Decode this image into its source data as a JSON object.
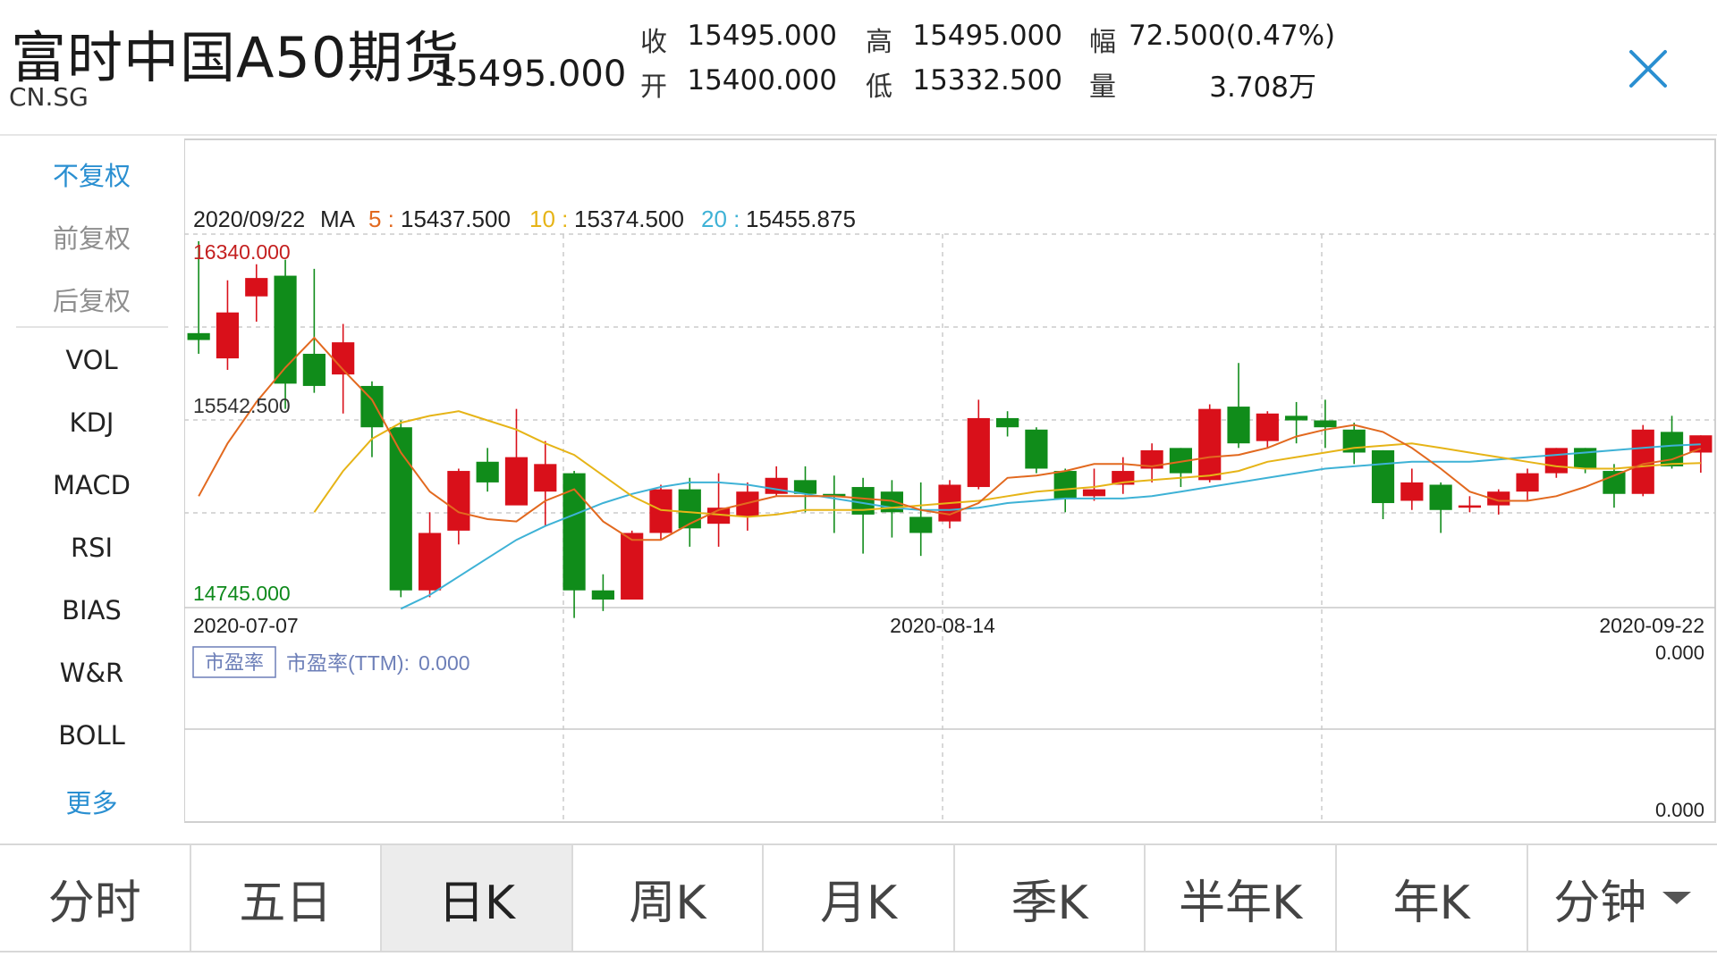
{
  "header": {
    "title": "富时中国A50期货",
    "code": "CN.SG",
    "last_price": "15495.000",
    "quotes": [
      {
        "label": "收",
        "value": "15495.000"
      },
      {
        "label": "开",
        "value": "15400.000"
      },
      {
        "label": "高",
        "value": "15495.000"
      },
      {
        "label": "低",
        "value": "15332.500"
      },
      {
        "label": "幅",
        "value": "72.500(0.47%)"
      },
      {
        "label": "量",
        "value": "3.708万"
      }
    ]
  },
  "side_menu": {
    "items": [
      "不复权",
      "前复权",
      "后复权",
      "VOL",
      "KDJ",
      "MACD",
      "RSI",
      "BIAS",
      "W&R",
      "BOLL",
      "更多"
    ],
    "active": "不复权"
  },
  "chart_data": {
    "type": "candlestick",
    "ma_info": {
      "date": "2020/09/22",
      "label": "MA",
      "ma5_label": "5 :",
      "ma5": "15437.500",
      "ma10_label": "10 :",
      "ma10": "15374.500",
      "ma20_label": "20 :",
      "ma20": "15455.875"
    },
    "y_labels": {
      "max": "16340.000",
      "mid": "15542.500",
      "min": "14745.000"
    },
    "ylim": [
      14745,
      16340
    ],
    "x_labels": [
      "2020-07-07",
      "2020-08-14",
      "2020-09-22"
    ],
    "candles": [
      [
        15940,
        15910,
        16340,
        15850
      ],
      [
        15830,
        16030,
        16170,
        15780
      ],
      [
        16100,
        16180,
        16240,
        15990
      ],
      [
        16190,
        15720,
        16260,
        15610
      ],
      [
        15850,
        15710,
        16220,
        15680
      ],
      [
        15760,
        15900,
        15980,
        15590
      ],
      [
        15710,
        15530,
        15730,
        15400
      ],
      [
        15530,
        14820,
        15560,
        14790
      ],
      [
        14820,
        15070,
        15160,
        14790
      ],
      [
        15080,
        15340,
        15350,
        15020
      ],
      [
        15380,
        15290,
        15440,
        15250
      ],
      [
        15190,
        15400,
        15610,
        15210
      ],
      [
        15250,
        15370,
        15470,
        15100
      ],
      [
        15330,
        14820,
        15340,
        14700
      ],
      [
        14820,
        14780,
        14890,
        14730
      ],
      [
        14780,
        15070,
        15080,
        14780
      ],
      [
        15070,
        15260,
        15280,
        15040
      ],
      [
        15260,
        15090,
        15310,
        15010
      ],
      [
        15110,
        15180,
        15330,
        15010
      ],
      [
        15140,
        15250,
        15290,
        15080
      ],
      [
        15240,
        15310,
        15360,
        15230
      ],
      [
        15300,
        15240,
        15360,
        15160
      ],
      [
        15240,
        15230,
        15320,
        15070
      ],
      [
        15270,
        15150,
        15310,
        14980
      ],
      [
        15250,
        15160,
        15300,
        15050
      ],
      [
        15140,
        15070,
        15290,
        14970
      ],
      [
        15120,
        15280,
        15300,
        15090
      ],
      [
        15270,
        15570,
        15650,
        15260
      ],
      [
        15570,
        15530,
        15600,
        15490
      ],
      [
        15520,
        15350,
        15530,
        15330
      ],
      [
        15340,
        15220,
        15350,
        15160
      ],
      [
        15230,
        15260,
        15350,
        15210
      ],
      [
        15280,
        15340,
        15400,
        15240
      ],
      [
        15350,
        15430,
        15460,
        15290
      ],
      [
        15440,
        15330,
        15440,
        15270
      ],
      [
        15300,
        15610,
        15630,
        15290
      ],
      [
        15620,
        15460,
        15810,
        15440
      ],
      [
        15470,
        15590,
        15600,
        15440
      ],
      [
        15580,
        15560,
        15640,
        15460
      ],
      [
        15560,
        15530,
        15650,
        15440
      ],
      [
        15520,
        15420,
        15550,
        15370
      ],
      [
        15430,
        15200,
        15430,
        15130
      ],
      [
        15210,
        15290,
        15350,
        15170
      ],
      [
        15280,
        15170,
        15290,
        15070
      ],
      [
        15180,
        15190,
        15230,
        15160
      ],
      [
        15190,
        15250,
        15260,
        15150
      ],
      [
        15250,
        15330,
        15350,
        15210
      ],
      [
        15330,
        15440,
        15440,
        15310
      ],
      [
        15440,
        15350,
        15440,
        15330
      ],
      [
        15340,
        15240,
        15370,
        15180
      ],
      [
        15240,
        15520,
        15540,
        15230
      ],
      [
        15510,
        15360,
        15580,
        15350
      ],
      [
        15420,
        15495,
        15495,
        15332.5
      ]
    ],
    "ma5": [
      15230,
      15460,
      15640,
      15790,
      15920,
      15780,
      15650,
      15420,
      15250,
      15160,
      15130,
      15120,
      15210,
      15260,
      15120,
      15040,
      15040,
      15110,
      15170,
      15200,
      15230,
      15230,
      15230,
      15220,
      15210,
      15170,
      15150,
      15200,
      15310,
      15320,
      15340,
      15370,
      15370,
      15360,
      15380,
      15400,
      15410,
      15440,
      15490,
      15520,
      15540,
      15510,
      15440,
      15350,
      15250,
      15210,
      15210,
      15230,
      15270,
      15320,
      15370,
      15390,
      15437.5
    ],
    "ma10": [
      null,
      null,
      null,
      null,
      15160,
      15340,
      15480,
      15550,
      15580,
      15600,
      15560,
      15520,
      15460,
      15410,
      15320,
      15230,
      15170,
      15160,
      15150,
      15140,
      15150,
      15170,
      15170,
      15170,
      15180,
      15190,
      15200,
      15210,
      15230,
      15250,
      15260,
      15270,
      15290,
      15300,
      15310,
      15320,
      15340,
      15380,
      15400,
      15420,
      15440,
      15450,
      15460,
      15440,
      15420,
      15400,
      15380,
      15360,
      15350,
      15350,
      15360,
      15370,
      15374.5
    ],
    "ma20": [
      null,
      null,
      null,
      null,
      null,
      null,
      null,
      14740,
      14800,
      14880,
      14960,
      15040,
      15100,
      15150,
      15200,
      15240,
      15270,
      15290,
      15290,
      15280,
      15260,
      15240,
      15220,
      15200,
      15180,
      15170,
      15170,
      15180,
      15200,
      15210,
      15220,
      15220,
      15220,
      15230,
      15250,
      15270,
      15290,
      15310,
      15330,
      15350,
      15360,
      15370,
      15380,
      15380,
      15380,
      15390,
      15400,
      15410,
      15420,
      15430,
      15440,
      15450,
      15455.875
    ],
    "sub_panel": {
      "tag": "市盈率",
      "label": "市盈率(TTM):",
      "value": "0.000",
      "axis_top": "0.000",
      "axis_bottom": "0.000"
    },
    "colors": {
      "up": "#d9101a",
      "down": "#108c1a",
      "ma5": "#e2691f",
      "ma10": "#e6b417",
      "ma20": "#3eb2d6",
      "high_label": "#c41f1f",
      "low_label": "#0f8a1c",
      "grid": "#cccccc",
      "sub_label": "#6d7fb8"
    }
  },
  "tabs": {
    "items": [
      "分时",
      "五日",
      "日K",
      "周K",
      "月K",
      "季K",
      "半年K",
      "年K",
      "分钟"
    ],
    "active": "日K"
  },
  "icons": {
    "close": "close-icon",
    "dropdown": "chevron-down-icon"
  },
  "accent_color": "#2a8fd1"
}
